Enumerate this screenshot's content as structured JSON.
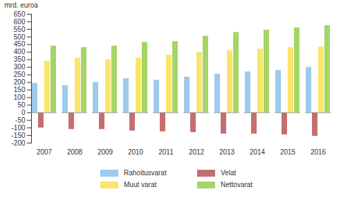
{
  "chart_data": {
    "type": "bar",
    "y_label": "mrd. euroa",
    "categories": [
      "2007",
      "2008",
      "2009",
      "2010",
      "2011",
      "2012",
      "2013",
      "2014",
      "2015",
      "2016"
    ],
    "series": [
      {
        "name": "Rahoitusvarat",
        "color": "#9ccbee",
        "values": [
          195,
          180,
          200,
          225,
          215,
          235,
          255,
          270,
          280,
          300
        ]
      },
      {
        "name": "Velat",
        "color": "#c46f6f",
        "values": [
          -100,
          -110,
          -110,
          -120,
          -125,
          -130,
          -140,
          -140,
          -145,
          -155
        ]
      },
      {
        "name": "Muut varat",
        "color": "#f9e56a",
        "values": [
          340,
          360,
          350,
          360,
          380,
          400,
          410,
          420,
          430,
          435
        ]
      },
      {
        "name": "Nettovarat",
        "color": "#a6d467",
        "values": [
          440,
          430,
          440,
          465,
          470,
          505,
          530,
          545,
          560,
          575
        ]
      }
    ],
    "ylim": [
      -200,
      650
    ],
    "yticks": [
      -200,
      -150,
      -100,
      -50,
      0,
      50,
      100,
      150,
      200,
      250,
      300,
      350,
      400,
      450,
      500,
      550,
      600,
      650
    ],
    "grid": false,
    "legend": "bottom"
  }
}
